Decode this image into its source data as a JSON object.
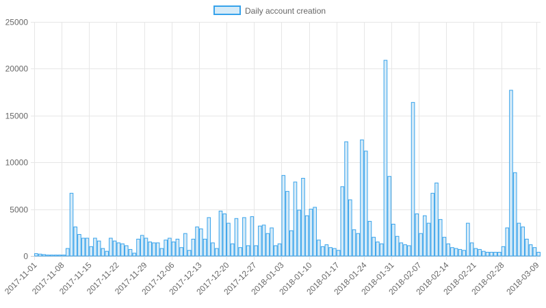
{
  "chart_data": {
    "type": "bar",
    "legend_position": "top",
    "grid": true,
    "series": [
      {
        "name": "Daily account creation",
        "fill": "#d6ebf8",
        "stroke": "#36a2eb"
      }
    ],
    "start_date": "2017-11-01",
    "x_tick_labels": [
      "2017-11-01",
      "2017-11-08",
      "2017-11-15",
      "2017-11-22",
      "2017-11-29",
      "2017-12-06",
      "2017-12-13",
      "2017-12-20",
      "2017-12-27",
      "2018-01-03",
      "2018-01-10",
      "2018-01-17",
      "2018-01-24",
      "2018-01-31",
      "2018-02-07",
      "2018-02-14",
      "2018-02-21",
      "2018-02-28",
      "2018-03-09"
    ],
    "y_tick_labels": [
      "0",
      "5000",
      "10000",
      "15000",
      "20000",
      "25000"
    ],
    "ylim": [
      0,
      25000
    ],
    "values": [
      250,
      200,
      150,
      100,
      100,
      100,
      100,
      100,
      800,
      6700,
      3100,
      2300,
      1900,
      1900,
      1000,
      1900,
      1600,
      800,
      500,
      1900,
      1600,
      1400,
      1300,
      1100,
      700,
      300,
      1800,
      2200,
      1900,
      1500,
      1400,
      1400,
      800,
      1700,
      1900,
      1500,
      1800,
      900,
      2400,
      600,
      1800,
      3100,
      2900,
      1800,
      4100,
      1400,
      800,
      4800,
      4500,
      3500,
      1300,
      4000,
      900,
      4100,
      1100,
      4200,
      1100,
      3200,
      3300,
      2400,
      3000,
      1100,
      1300,
      8600,
      6900,
      2700,
      7900,
      4900,
      8300,
      4300,
      5000,
      5200,
      1700,
      1000,
      1200,
      900,
      800,
      600,
      7400,
      12200,
      6000,
      2800,
      2400,
      12400,
      11200,
      3700,
      2000,
      1500,
      1300,
      20900,
      8500,
      3400,
      2100,
      1400,
      1200,
      1100,
      16400,
      4500,
      2400,
      4300,
      3500,
      6700,
      7800,
      3900,
      2000,
      1300,
      900,
      800,
      700,
      600,
      3500,
      1400,
      800,
      700,
      500,
      400,
      400,
      400,
      400,
      1000,
      3000,
      17700,
      8900,
      3500,
      3100,
      1800,
      1200,
      900,
      400
    ]
  }
}
